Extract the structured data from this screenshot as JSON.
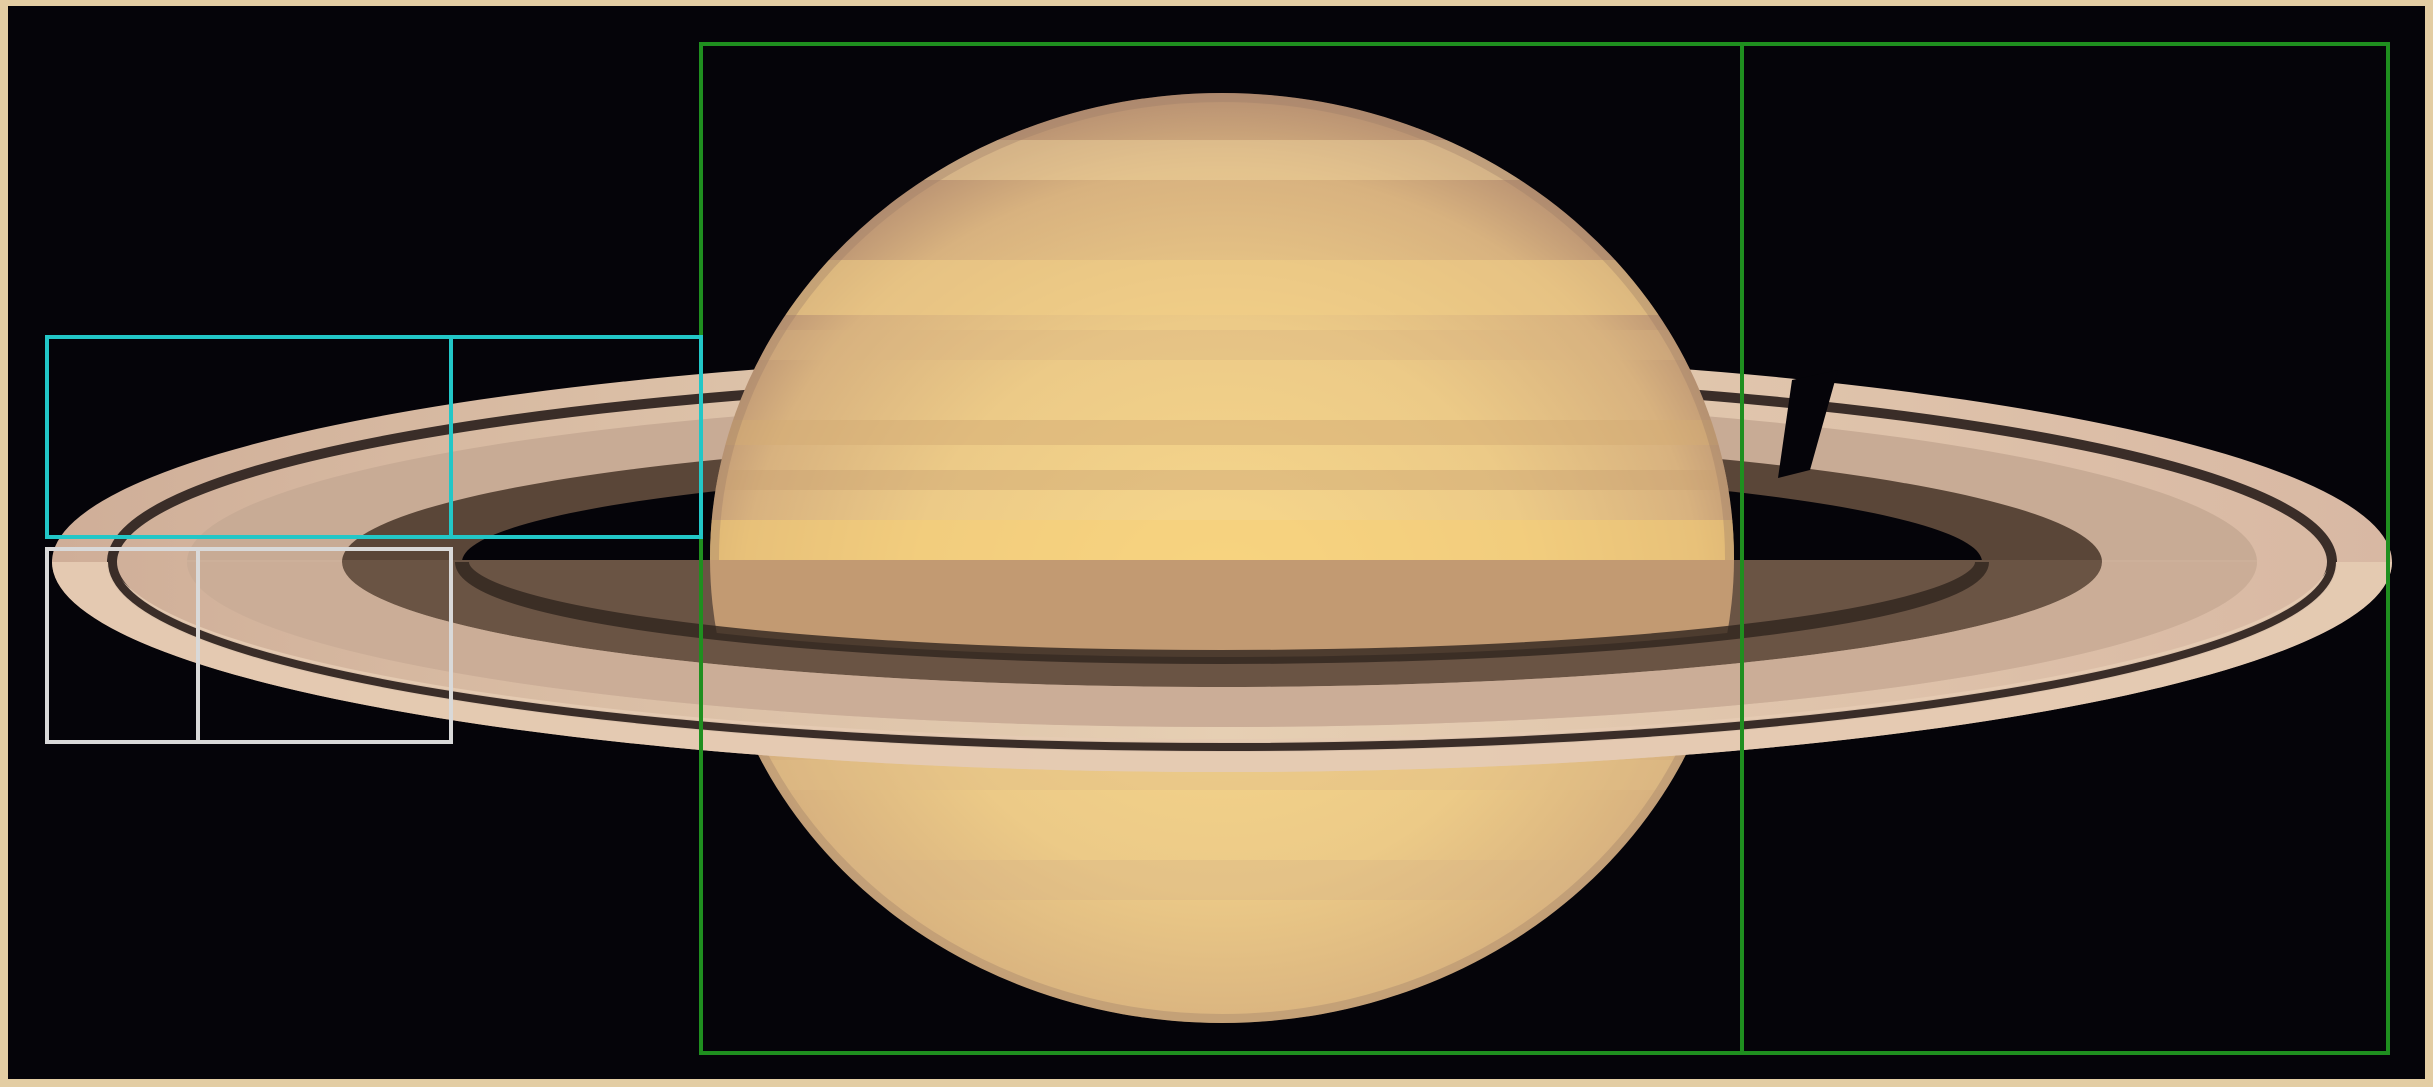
{
  "image": {
    "subject": "planet-with-rings",
    "background_color": "#050409",
    "frame_color": "#e3cda3"
  },
  "colors": {
    "planet_light": "#f6d98f",
    "planet_mid": "#e7c07a",
    "planet_dark": "#b98d5f",
    "ring_light": "#e8cdb0",
    "ring_mid": "#c9a98d",
    "ring_dark": "#4a3a30",
    "shadow": "#2a201b",
    "overlay_green": "#1f8f1f",
    "overlay_cyan": "#22c7c7",
    "overlay_white": "#d9d9d9"
  },
  "overlays": [
    {
      "name": "golden-rectangle-large",
      "color": "overlay_green"
    },
    {
      "name": "golden-rectangle-cyan",
      "color": "overlay_cyan"
    },
    {
      "name": "golden-rectangle-white",
      "color": "overlay_white"
    }
  ]
}
